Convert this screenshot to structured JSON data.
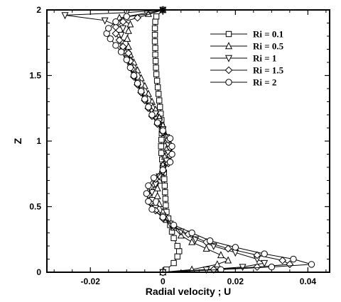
{
  "chart_data": {
    "type": "line",
    "xlabel": "Radial velocity ; U",
    "ylabel": "Z",
    "xlim": [
      -0.032,
      0.046
    ],
    "ylim": [
      0,
      2
    ],
    "x_ticks": [
      -0.02,
      0,
      0.02,
      0.04
    ],
    "x_tick_labels": [
      "-0.02",
      "0",
      "0.02",
      "0.04"
    ],
    "y_ticks": [
      0,
      0.5,
      1,
      1.5,
      2
    ],
    "y_tick_labels": [
      "0",
      "0.5",
      "1",
      "1.5",
      "2"
    ],
    "grid": false,
    "legend_position": "top-right",
    "series": [
      {
        "name": "Ri = 0.1",
        "marker": "square",
        "points": [
          [
            0,
            0.0
          ],
          [
            0.001,
            0.02
          ],
          [
            0.003,
            0.07
          ],
          [
            0.004,
            0.12
          ],
          [
            0.0045,
            0.16
          ],
          [
            0.004,
            0.2
          ],
          [
            0.003,
            0.26
          ],
          [
            0.0025,
            0.31
          ],
          [
            0.002,
            0.36
          ],
          [
            0.0015,
            0.41
          ],
          [
            0.001,
            0.46
          ],
          [
            0.0008,
            0.51
          ],
          [
            0.0007,
            0.56
          ],
          [
            0.0006,
            0.61
          ],
          [
            0.0005,
            0.66
          ],
          [
            0.0004,
            0.71
          ],
          [
            0.0003,
            0.76
          ],
          [
            0.0,
            0.81
          ],
          [
            -0.0002,
            0.86
          ],
          [
            -0.0004,
            0.91
          ],
          [
            -0.0005,
            0.96
          ],
          [
            -0.0004,
            1.01
          ],
          [
            -0.0003,
            1.06
          ],
          [
            -0.0003,
            1.11
          ],
          [
            -0.0004,
            1.16
          ],
          [
            -0.0006,
            1.21
          ],
          [
            -0.0008,
            1.26
          ],
          [
            -0.001,
            1.31
          ],
          [
            -0.0012,
            1.36
          ],
          [
            -0.0014,
            1.41
          ],
          [
            -0.0016,
            1.46
          ],
          [
            -0.0018,
            1.51
          ],
          [
            -0.0019,
            1.56
          ],
          [
            -0.002,
            1.61
          ],
          [
            -0.0021,
            1.66
          ],
          [
            -0.0021,
            1.71
          ],
          [
            -0.0022,
            1.76
          ],
          [
            -0.0022,
            1.81
          ],
          [
            -0.0022,
            1.86
          ],
          [
            -0.0021,
            1.91
          ],
          [
            -0.0018,
            1.95
          ],
          [
            0,
            2.0
          ]
        ]
      },
      {
        "name": "Ri = 0.5",
        "marker": "triangle-up",
        "points": [
          [
            0,
            0.0
          ],
          [
            0.008,
            0.02
          ],
          [
            0.015,
            0.06
          ],
          [
            0.018,
            0.09
          ],
          [
            0.016,
            0.13
          ],
          [
            0.012,
            0.18
          ],
          [
            0.008,
            0.23
          ],
          [
            0.005,
            0.28
          ],
          [
            0.003,
            0.34
          ],
          [
            0.001,
            0.4
          ],
          [
            0.0,
            0.46
          ],
          [
            -0.001,
            0.52
          ],
          [
            -0.0015,
            0.58
          ],
          [
            -0.0015,
            0.64
          ],
          [
            -0.001,
            0.7
          ],
          [
            -0.0005,
            0.76
          ],
          [
            0.0,
            0.82
          ],
          [
            0.0005,
            0.88
          ],
          [
            0.001,
            0.94
          ],
          [
            0.001,
            1.0
          ],
          [
            0.0005,
            1.06
          ],
          [
            0.0,
            1.12
          ],
          [
            -0.001,
            1.18
          ],
          [
            -0.002,
            1.24
          ],
          [
            -0.003,
            1.3
          ],
          [
            -0.004,
            1.36
          ],
          [
            -0.005,
            1.42
          ],
          [
            -0.006,
            1.48
          ],
          [
            -0.007,
            1.54
          ],
          [
            -0.008,
            1.6
          ],
          [
            -0.009,
            1.66
          ],
          [
            -0.0095,
            1.72
          ],
          [
            -0.0098,
            1.78
          ],
          [
            -0.0095,
            1.84
          ],
          [
            -0.009,
            1.89
          ],
          [
            -0.012,
            1.94
          ],
          [
            -0.004,
            1.97
          ],
          [
            0,
            2.0
          ]
        ]
      },
      {
        "name": "Ri = 1",
        "marker": "triangle-down",
        "points": [
          [
            0,
            0.0
          ],
          [
            0.012,
            0.02
          ],
          [
            0.022,
            0.04
          ],
          [
            0.028,
            0.07
          ],
          [
            0.026,
            0.1
          ],
          [
            0.02,
            0.15
          ],
          [
            0.014,
            0.2
          ],
          [
            0.009,
            0.25
          ],
          [
            0.005,
            0.31
          ],
          [
            0.002,
            0.37
          ],
          [
            0.0,
            0.43
          ],
          [
            -0.002,
            0.49
          ],
          [
            -0.003,
            0.55
          ],
          [
            -0.003,
            0.61
          ],
          [
            -0.002,
            0.67
          ],
          [
            -0.001,
            0.73
          ],
          [
            0.0,
            0.79
          ],
          [
            0.001,
            0.85
          ],
          [
            0.0015,
            0.91
          ],
          [
            0.0015,
            0.97
          ],
          [
            0.001,
            1.03
          ],
          [
            0.0,
            1.09
          ],
          [
            -0.001,
            1.15
          ],
          [
            -0.002,
            1.21
          ],
          [
            -0.0035,
            1.27
          ],
          [
            -0.005,
            1.33
          ],
          [
            -0.006,
            1.39
          ],
          [
            -0.007,
            1.45
          ],
          [
            -0.008,
            1.51
          ],
          [
            -0.009,
            1.57
          ],
          [
            -0.01,
            1.63
          ],
          [
            -0.011,
            1.69
          ],
          [
            -0.0115,
            1.75
          ],
          [
            -0.0115,
            1.81
          ],
          [
            -0.011,
            1.86
          ],
          [
            -0.016,
            1.92
          ],
          [
            -0.027,
            1.96
          ],
          [
            -0.01,
            1.98
          ],
          [
            0,
            2.0
          ]
        ]
      },
      {
        "name": "Ri = 1.5",
        "marker": "diamond",
        "points": [
          [
            0,
            0.0
          ],
          [
            0.014,
            0.02
          ],
          [
            0.026,
            0.04
          ],
          [
            0.035,
            0.06
          ],
          [
            0.033,
            0.09
          ],
          [
            0.026,
            0.13
          ],
          [
            0.018,
            0.18
          ],
          [
            0.012,
            0.23
          ],
          [
            0.007,
            0.29
          ],
          [
            0.003,
            0.35
          ],
          [
            0.0,
            0.41
          ],
          [
            -0.002,
            0.47
          ],
          [
            -0.0035,
            0.53
          ],
          [
            -0.004,
            0.59
          ],
          [
            -0.0035,
            0.65
          ],
          [
            -0.002,
            0.71
          ],
          [
            0.0,
            0.77
          ],
          [
            0.0015,
            0.83
          ],
          [
            0.002,
            0.89
          ],
          [
            0.002,
            0.95
          ],
          [
            0.0015,
            1.01
          ],
          [
            0.0,
            1.07
          ],
          [
            -0.0015,
            1.13
          ],
          [
            -0.003,
            1.19
          ],
          [
            -0.004,
            1.25
          ],
          [
            -0.005,
            1.31
          ],
          [
            -0.006,
            1.37
          ],
          [
            -0.007,
            1.43
          ],
          [
            -0.008,
            1.49
          ],
          [
            -0.0085,
            1.55
          ],
          [
            -0.009,
            1.61
          ],
          [
            -0.0095,
            1.67
          ],
          [
            -0.011,
            1.72
          ],
          [
            -0.012,
            1.77
          ],
          [
            -0.013,
            1.82
          ],
          [
            -0.013,
            1.87
          ],
          [
            -0.011,
            1.91
          ],
          [
            -0.007,
            1.94
          ],
          [
            0,
            2.0
          ]
        ]
      },
      {
        "name": "Ri = 2",
        "marker": "circle",
        "points": [
          [
            0,
            0.0
          ],
          [
            0.016,
            0.02
          ],
          [
            0.03,
            0.04
          ],
          [
            0.041,
            0.06
          ],
          [
            0.036,
            0.1
          ],
          [
            0.028,
            0.14
          ],
          [
            0.02,
            0.19
          ],
          [
            0.013,
            0.24
          ],
          [
            0.008,
            0.3
          ],
          [
            0.003,
            0.36
          ],
          [
            0.0,
            0.42
          ],
          [
            -0.003,
            0.48
          ],
          [
            -0.004,
            0.54
          ],
          [
            -0.0045,
            0.6
          ],
          [
            -0.004,
            0.66
          ],
          [
            -0.0025,
            0.72
          ],
          [
            0.0,
            0.78
          ],
          [
            0.002,
            0.84
          ],
          [
            0.0025,
            0.9
          ],
          [
            0.0025,
            0.96
          ],
          [
            0.002,
            1.02
          ],
          [
            0.0,
            1.08
          ],
          [
            -0.0015,
            1.14
          ],
          [
            -0.003,
            1.2
          ],
          [
            -0.004,
            1.26
          ],
          [
            -0.005,
            1.32
          ],
          [
            -0.006,
            1.38
          ],
          [
            -0.007,
            1.44
          ],
          [
            -0.008,
            1.5
          ],
          [
            -0.009,
            1.56
          ],
          [
            -0.01,
            1.62
          ],
          [
            -0.0115,
            1.68
          ],
          [
            -0.013,
            1.73
          ],
          [
            -0.0145,
            1.78
          ],
          [
            -0.0155,
            1.82
          ],
          [
            -0.015,
            1.86
          ],
          [
            -0.013,
            1.91
          ],
          [
            -0.01,
            1.95
          ],
          [
            0,
            2.0
          ]
        ]
      }
    ]
  }
}
